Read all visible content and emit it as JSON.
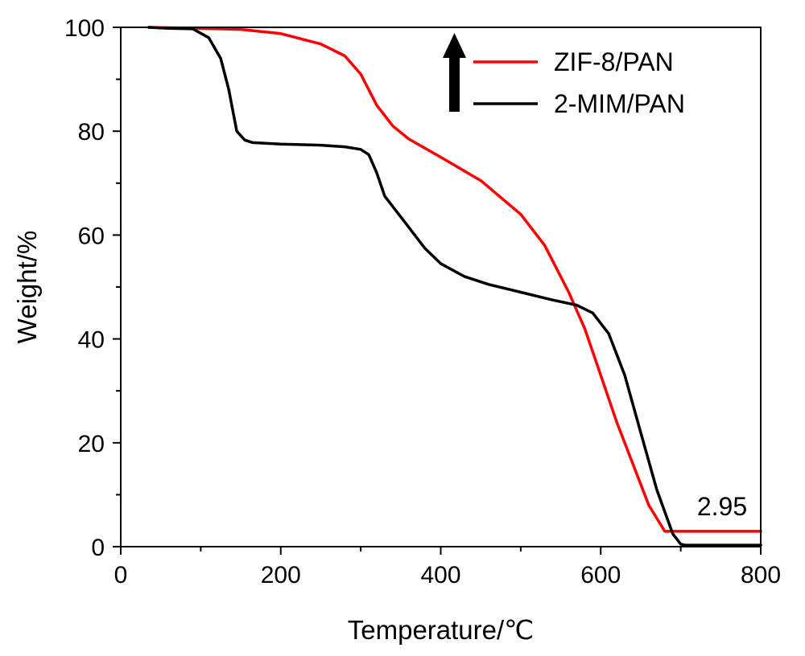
{
  "chart_data": {
    "type": "line",
    "title": "",
    "xlabel": "Temperature/℃",
    "ylabel": "Weight/%",
    "xlim": [
      0,
      800
    ],
    "ylim": [
      0,
      100
    ],
    "xticks": [
      0,
      200,
      400,
      600,
      800
    ],
    "yticks": [
      0,
      20,
      40,
      60,
      80,
      100
    ],
    "x_minor_step": 100,
    "y_minor_step": 10,
    "grid": false,
    "legend_position": "top-right",
    "series": [
      {
        "name": "ZIF-8/PAN",
        "color": "#ff0000",
        "x": [
          35,
          100,
          150,
          200,
          250,
          280,
          300,
          320,
          340,
          360,
          400,
          450,
          500,
          530,
          560,
          580,
          600,
          620,
          640,
          660,
          680,
          700,
          750,
          800
        ],
        "y": [
          100,
          99.8,
          99.6,
          98.8,
          96.8,
          94.5,
          91,
          85,
          81,
          78.5,
          75,
          70.5,
          64,
          58,
          49,
          42,
          33,
          24,
          16,
          8,
          2.95,
          2.95,
          2.95,
          2.95
        ]
      },
      {
        "name": "2-MIM/PAN",
        "color": "#000000",
        "x": [
          35,
          60,
          90,
          110,
          125,
          135,
          145,
          155,
          165,
          200,
          250,
          280,
          300,
          310,
          320,
          330,
          340,
          360,
          380,
          400,
          430,
          460,
          500,
          540,
          570,
          590,
          610,
          630,
          650,
          670,
          690,
          700,
          705,
          750,
          800
        ],
        "y": [
          100,
          99.8,
          99.7,
          98,
          94,
          88,
          80,
          78.3,
          77.8,
          77.5,
          77.3,
          77,
          76.5,
          75.5,
          72,
          67.5,
          65.5,
          61.5,
          57.5,
          54.5,
          52,
          50.5,
          49,
          47.5,
          46.5,
          45,
          41,
          33,
          22,
          11,
          2.5,
          0.5,
          0.3,
          0.3,
          0.3
        ]
      }
    ],
    "annotations": [
      {
        "text": "2.95",
        "x": 800,
        "y": 2.95
      }
    ]
  }
}
